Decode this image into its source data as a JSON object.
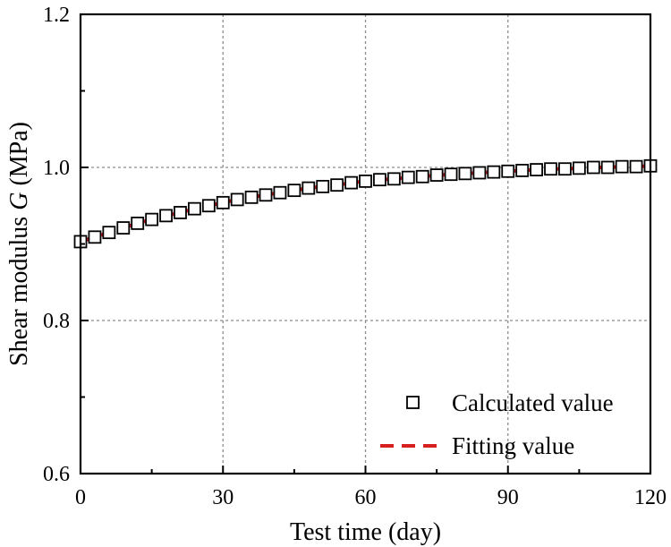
{
  "chart_data": {
    "type": "scatter",
    "xlabel": "Test time (day)",
    "ylabel_prefix": "Shear modulus ",
    "ylabel_symbol": "G",
    "ylabel_suffix": " (MPa)",
    "xlim": [
      0,
      120
    ],
    "ylim": [
      0.6,
      1.2
    ],
    "xticks": [
      0,
      30,
      60,
      90,
      120
    ],
    "xtick_labels": [
      "0",
      "30",
      "60",
      "90",
      "120"
    ],
    "yticks": [
      0.6,
      0.8,
      1.0,
      1.2
    ],
    "ytick_labels": [
      "0.6",
      "0.8",
      "1.0",
      "1.2"
    ],
    "grid": true,
    "legend_position": "bottom-right",
    "series": [
      {
        "name": "Calculated value",
        "kind": "markers",
        "marker": "open-square",
        "color": "#000000",
        "x": [
          0,
          3,
          6,
          9,
          12,
          15,
          18,
          21,
          24,
          27,
          30,
          33,
          36,
          39,
          42,
          45,
          48,
          51,
          54,
          57,
          60,
          63,
          66,
          69,
          72,
          75,
          78,
          81,
          84,
          87,
          90,
          93,
          96,
          99,
          102,
          105,
          108,
          111,
          114,
          117,
          120
        ],
        "y": [
          0.903,
          0.909,
          0.915,
          0.921,
          0.927,
          0.932,
          0.937,
          0.941,
          0.946,
          0.95,
          0.954,
          0.958,
          0.961,
          0.964,
          0.967,
          0.97,
          0.973,
          0.975,
          0.977,
          0.98,
          0.982,
          0.984,
          0.985,
          0.987,
          0.988,
          0.99,
          0.991,
          0.992,
          0.993,
          0.994,
          0.995,
          0.996,
          0.997,
          0.998,
          0.998,
          0.999,
          1.0,
          1.0,
          1.001,
          1.001,
          1.002
        ]
      },
      {
        "name": "Fitting value",
        "kind": "line",
        "line_style": "dashed",
        "color": "#d62020",
        "x": [
          0,
          3,
          6,
          9,
          12,
          15,
          18,
          21,
          24,
          27,
          30,
          33,
          36,
          39,
          42,
          45,
          48,
          51,
          54,
          57,
          60,
          63,
          66,
          69,
          72,
          75,
          78,
          81,
          84,
          87,
          90,
          93,
          96,
          99,
          102,
          105,
          108,
          111,
          114,
          117,
          120
        ],
        "y": [
          0.903,
          0.909,
          0.915,
          0.921,
          0.927,
          0.932,
          0.937,
          0.941,
          0.946,
          0.95,
          0.954,
          0.958,
          0.961,
          0.964,
          0.967,
          0.97,
          0.973,
          0.975,
          0.977,
          0.98,
          0.982,
          0.984,
          0.985,
          0.987,
          0.988,
          0.99,
          0.991,
          0.992,
          0.993,
          0.994,
          0.995,
          0.996,
          0.997,
          0.998,
          0.998,
          0.999,
          1.0,
          1.0,
          1.001,
          1.001,
          1.002
        ]
      }
    ]
  }
}
